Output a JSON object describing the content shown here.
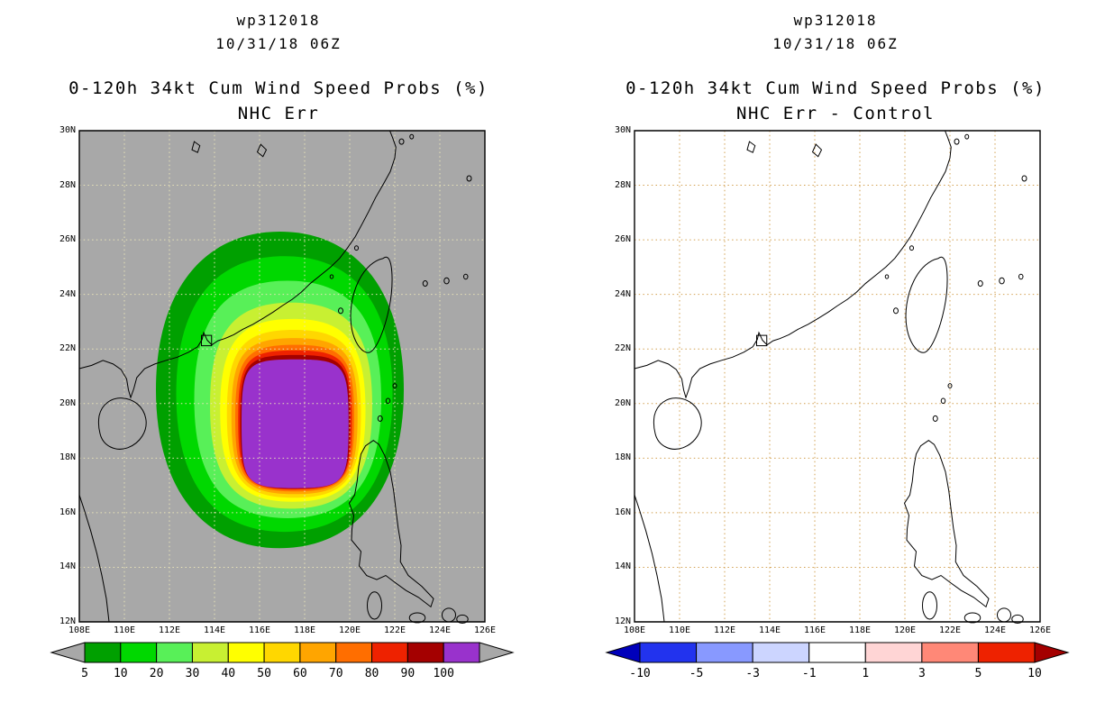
{
  "page": {
    "background": "#FFFFFF"
  },
  "panels": [
    {
      "id": "nhc-err",
      "header_line1": "wp312018",
      "header_line2": "10/31/18 06Z",
      "title_line1": "0-120h 34kt Cum Wind Speed Probs (%)",
      "title_line2": "NHC Err",
      "map": {
        "background": "#A8A8A8",
        "border_color": "#000000",
        "coast_color": "#000000",
        "grid_color": "#E9E3B8",
        "lon_min": 108,
        "lon_max": 126,
        "lat_min": 12,
        "lat_max": 30,
        "lon_tick_labels": [
          "108E",
          "110E",
          "112E",
          "114E",
          "116E",
          "118E",
          "120E",
          "122E",
          "124E",
          "126E"
        ],
        "lat_tick_labels": [
          "30N",
          "28N",
          "26N",
          "24N",
          "22N",
          "20N",
          "18N",
          "16N",
          "14N",
          "12N"
        ]
      },
      "colorbar": {
        "labels": [
          "5",
          "10",
          "20",
          "30",
          "40",
          "50",
          "60",
          "70",
          "80",
          "90",
          "100"
        ],
        "segment_colors": [
          "#00A000",
          "#00D800",
          "#58F058",
          "#C8F032",
          "#FFFF00",
          "#FFD700",
          "#FFA500",
          "#FF6E00",
          "#EE2200",
          "#A40000",
          "#9932CC"
        ],
        "arrow_left_color": "#A8A8A8",
        "arrow_right_color": "#A8A8A8"
      }
    },
    {
      "id": "nhc-err-minus-control",
      "header_line1": "wp312018",
      "header_line2": "10/31/18 06Z",
      "title_line1": "0-120h 34kt Cum Wind Speed Probs (%)",
      "title_line2": "NHC Err - Control",
      "map": {
        "background": "#FFFFFF",
        "border_color": "#000000",
        "coast_color": "#000000",
        "grid_color": "#D2A050",
        "lon_min": 108,
        "lon_max": 126,
        "lat_min": 12,
        "lat_max": 30,
        "lon_tick_labels": [
          "108E",
          "110E",
          "112E",
          "114E",
          "116E",
          "118E",
          "120E",
          "122E",
          "124E",
          "126E"
        ],
        "lat_tick_labels": [
          "30N",
          "28N",
          "26N",
          "24N",
          "22N",
          "20N",
          "18N",
          "16N",
          "14N",
          "12N"
        ]
      },
      "colorbar": {
        "labels": [
          "-10",
          "-5",
          "-3",
          "-1",
          "1",
          "3",
          "5",
          "10"
        ],
        "segment_colors": [
          "#2233EE",
          "#8899FF",
          "#CCD5FF",
          "#FFFFFF",
          "#FFD5D5",
          "#FF8877",
          "#EE2200"
        ],
        "arrow_left_color": "#0000BB",
        "arrow_right_color": "#A40000"
      }
    }
  ],
  "chart_data": [
    {
      "type": "heatmap",
      "panel": "NHC Err",
      "title": "wp312018 10/31/18 06Z",
      "subtitle": "0-120h 34kt Cum Wind Speed Probs (%) NHC Err",
      "xlabel": "longitude",
      "ylabel": "latitude",
      "xlim": [
        108,
        126
      ],
      "ylim": [
        12,
        30
      ],
      "x_tick_labels": [
        "108E",
        "110E",
        "112E",
        "114E",
        "116E",
        "118E",
        "120E",
        "122E",
        "124E",
        "126E"
      ],
      "y_tick_labels": [
        "12N",
        "14N",
        "16N",
        "18N",
        "20N",
        "22N",
        "24N",
        "26N",
        "28N",
        "30N"
      ],
      "grid": true,
      "units": "%",
      "levels": [
        5,
        10,
        20,
        30,
        40,
        50,
        60,
        70,
        80,
        90,
        100
      ],
      "legend_position": "bottom",
      "contours": [
        {
          "level": 5,
          "color": "#00A000",
          "west_lon": 111.4,
          "east_lon": 122.4,
          "north_lat": 26.3,
          "south_lat": 14.7
        },
        {
          "level": 10,
          "color": "#00D800",
          "west_lon": 112.3,
          "east_lon": 121.9,
          "north_lat": 25.4,
          "south_lat": 15.3
        },
        {
          "level": 20,
          "color": "#58F058",
          "west_lon": 113.1,
          "east_lon": 121.4,
          "north_lat": 24.5,
          "south_lat": 15.8
        },
        {
          "level": 30,
          "color": "#C8F032",
          "west_lon": 113.8,
          "east_lon": 121.0,
          "north_lat": 23.7,
          "south_lat": 16.15
        },
        {
          "level": 40,
          "color": "#FFFF00",
          "west_lon": 114.25,
          "east_lon": 120.7,
          "north_lat": 23.1,
          "south_lat": 16.4
        },
        {
          "level": 50,
          "color": "#FFD700",
          "west_lon": 114.55,
          "east_lon": 120.5,
          "north_lat": 22.7,
          "south_lat": 16.55
        },
        {
          "level": 60,
          "color": "#FFA500",
          "west_lon": 114.75,
          "east_lon": 120.35,
          "north_lat": 22.4,
          "south_lat": 16.68
        },
        {
          "level": 70,
          "color": "#FF6E00",
          "west_lon": 114.92,
          "east_lon": 120.2,
          "north_lat": 22.15,
          "south_lat": 16.78
        },
        {
          "level": 80,
          "color": "#EE2200",
          "west_lon": 115.05,
          "east_lon": 120.1,
          "north_lat": 21.95,
          "south_lat": 16.85
        },
        {
          "level": 90,
          "color": "#A40000",
          "west_lon": 115.14,
          "east_lon": 120.02,
          "north_lat": 21.78,
          "south_lat": 16.88
        },
        {
          "level": 100,
          "color": "#9932CC",
          "west_lon": 115.2,
          "east_lon": 119.95,
          "north_lat": 21.62,
          "south_lat": 16.9
        }
      ],
      "marker_box": {
        "lon": 113.6,
        "lat": 22.3
      }
    },
    {
      "type": "heatmap",
      "panel": "NHC Err - Control",
      "title": "wp312018 10/31/18 06Z",
      "subtitle": "0-120h 34kt Cum Wind Speed Probs (%) NHC Err - Control",
      "xlabel": "longitude",
      "ylabel": "latitude",
      "xlim": [
        108,
        126
      ],
      "ylim": [
        12,
        30
      ],
      "x_tick_labels": [
        "108E",
        "110E",
        "112E",
        "114E",
        "116E",
        "118E",
        "120E",
        "122E",
        "124E",
        "126E"
      ],
      "y_tick_labels": [
        "12N",
        "14N",
        "16N",
        "18N",
        "20N",
        "22N",
        "24N",
        "26N",
        "28N",
        "30N"
      ],
      "grid": true,
      "units": "%",
      "levels": [
        -10,
        -5,
        -3,
        -1,
        1,
        3,
        5,
        10
      ],
      "legend_position": "bottom",
      "contours": [],
      "note": "difference field lies between -1 and 1 everywhere; map area is blank white",
      "marker_box": {
        "lon": 113.6,
        "lat": 22.3
      }
    }
  ]
}
